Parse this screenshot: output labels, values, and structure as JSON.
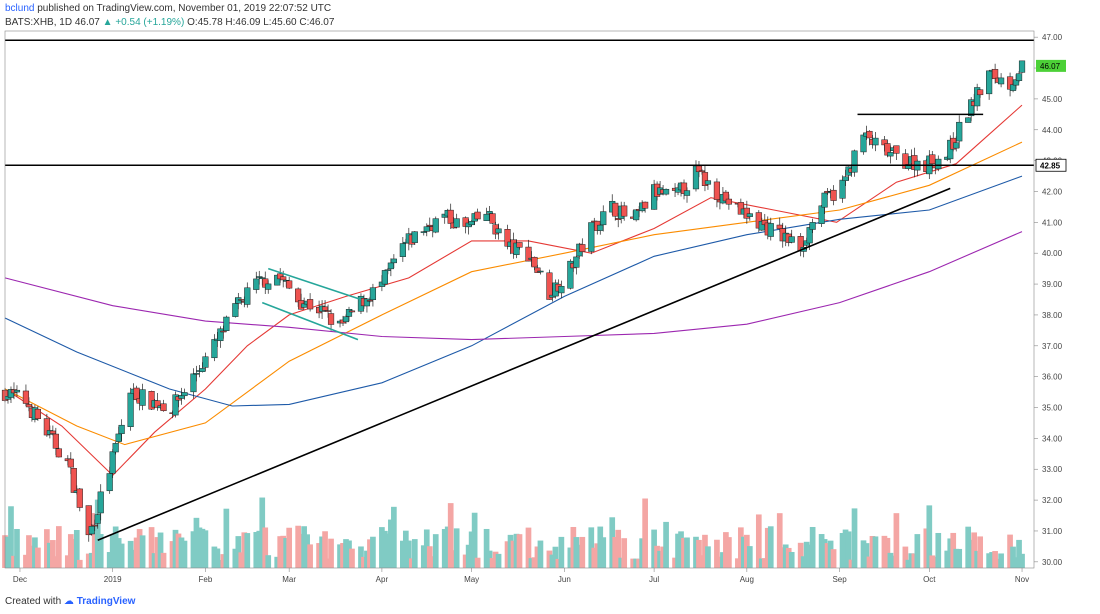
{
  "header": {
    "line1_user": "bclund",
    "line1_rest": "published on TradingView.com, November 01, 2019 22:07:52 UTC",
    "line2_symbol": "BATS:XHB, 1D",
    "line2_last": "46.07",
    "line2_change": "▲ +0.54 (+1.19%)",
    "line2_ohlc": "O:45.78 H:46.09 L:45.60 C:46.07"
  },
  "footer": {
    "created_with": "Created with",
    "brand": "TradingView"
  },
  "colors": {
    "up": "#26a69a",
    "down": "#ef5350",
    "ma_short": "#e53935",
    "ma_mid": "#fb8c00",
    "ma_long": "#1e5aa8",
    "ma_xlong": "#9c27b0",
    "channel": "#26a69a",
    "trendline": "#000000",
    "price_tag": "#4cd137"
  },
  "chart_data": {
    "type": "candlestick",
    "symbol": "BATS:XHB",
    "interval": "1D",
    "ylim": [
      29.8,
      47.2
    ],
    "y_ticks": [
      "47.00",
      "46.00",
      "45.00",
      "44.00",
      "43.00",
      "42.00",
      "41.00",
      "40.00",
      "39.00",
      "38.00",
      "37.00",
      "36.00",
      "35.00",
      "34.00",
      "33.00",
      "32.00",
      "31.00",
      "30.00"
    ],
    "x_labels": [
      {
        "label": "Dec",
        "date": "2018-12-01"
      },
      {
        "label": "2019",
        "date": "2019-01-01"
      },
      {
        "label": "Feb",
        "date": "2019-02-01"
      },
      {
        "label": "Mar",
        "date": "2019-03-01"
      },
      {
        "label": "Apr",
        "date": "2019-04-01"
      },
      {
        "label": "May",
        "date": "2019-05-01"
      },
      {
        "label": "Jun",
        "date": "2019-06-01"
      },
      {
        "label": "Jul",
        "date": "2019-07-01"
      },
      {
        "label": "Aug",
        "date": "2019-08-01"
      },
      {
        "label": "Sep",
        "date": "2019-09-01"
      },
      {
        "label": "Oct",
        "date": "2019-10-01"
      },
      {
        "label": "Nov",
        "date": "2019-11-01"
      }
    ],
    "last_price": {
      "value": 46.07,
      "label": "46.07"
    },
    "level_label": {
      "value": 42.85,
      "label": "42.85"
    },
    "price_path": [
      {
        "date": "2018-11-26",
        "close": 35.5
      },
      {
        "date": "2018-12-03",
        "close": 35.2
      },
      {
        "date": "2018-12-10",
        "close": 34.2
      },
      {
        "date": "2018-12-17",
        "close": 33.2
      },
      {
        "date": "2018-12-24",
        "close": 30.8
      },
      {
        "date": "2018-12-31",
        "close": 33.0
      },
      {
        "date": "2019-01-07",
        "close": 35.5
      },
      {
        "date": "2019-01-14",
        "close": 35.2
      },
      {
        "date": "2019-01-21",
        "close": 35.0
      },
      {
        "date": "2019-01-28",
        "close": 36.0
      },
      {
        "date": "2019-02-04",
        "close": 37.0
      },
      {
        "date": "2019-02-11",
        "close": 38.2
      },
      {
        "date": "2019-02-18",
        "close": 39.0
      },
      {
        "date": "2019-02-25",
        "close": 39.3
      },
      {
        "date": "2019-03-04",
        "close": 38.5
      },
      {
        "date": "2019-03-11",
        "close": 38.2
      },
      {
        "date": "2019-03-18",
        "close": 37.6
      },
      {
        "date": "2019-03-25",
        "close": 38.4
      },
      {
        "date": "2019-04-01",
        "close": 39.0
      },
      {
        "date": "2019-04-08",
        "close": 40.2
      },
      {
        "date": "2019-04-15",
        "close": 40.8
      },
      {
        "date": "2019-04-22",
        "close": 41.2
      },
      {
        "date": "2019-04-29",
        "close": 40.8
      },
      {
        "date": "2019-05-06",
        "close": 41.3
      },
      {
        "date": "2019-05-13",
        "close": 40.2
      },
      {
        "date": "2019-05-20",
        "close": 40.0
      },
      {
        "date": "2019-05-27",
        "close": 38.7
      },
      {
        "date": "2019-06-03",
        "close": 39.5
      },
      {
        "date": "2019-06-10",
        "close": 40.8
      },
      {
        "date": "2019-06-17",
        "close": 41.5
      },
      {
        "date": "2019-06-24",
        "close": 41.0
      },
      {
        "date": "2019-07-01",
        "close": 42.0
      },
      {
        "date": "2019-07-08",
        "close": 41.8
      },
      {
        "date": "2019-07-15",
        "close": 42.6
      },
      {
        "date": "2019-07-22",
        "close": 42.0
      },
      {
        "date": "2019-07-29",
        "close": 41.4
      },
      {
        "date": "2019-08-05",
        "close": 41.0
      },
      {
        "date": "2019-08-12",
        "close": 40.6
      },
      {
        "date": "2019-08-19",
        "close": 40.2
      },
      {
        "date": "2019-08-26",
        "close": 41.6
      },
      {
        "date": "2019-09-02",
        "close": 42.2
      },
      {
        "date": "2019-09-09",
        "close": 43.8
      },
      {
        "date": "2019-09-16",
        "close": 43.3
      },
      {
        "date": "2019-09-23",
        "close": 43.0
      },
      {
        "date": "2019-09-30",
        "close": 42.9
      },
      {
        "date": "2019-10-07",
        "close": 43.2
      },
      {
        "date": "2019-10-14",
        "close": 44.6
      },
      {
        "date": "2019-10-21",
        "close": 45.8
      },
      {
        "date": "2019-10-28",
        "close": 45.5
      },
      {
        "date": "2019-11-01",
        "close": 46.07
      }
    ],
    "moving_averages": [
      {
        "key": "ma_short",
        "points": [
          [
            "2018-11-26",
            35.6
          ],
          [
            "2018-12-15",
            34.4
          ],
          [
            "2019-01-01",
            32.8
          ],
          [
            "2019-01-15",
            34.2
          ],
          [
            "2019-02-01",
            35.6
          ],
          [
            "2019-02-15",
            37.0
          ],
          [
            "2019-03-01",
            38.0
          ],
          [
            "2019-03-20",
            38.6
          ],
          [
            "2019-04-10",
            39.2
          ],
          [
            "2019-05-01",
            40.4
          ],
          [
            "2019-05-20",
            40.4
          ],
          [
            "2019-06-10",
            40.0
          ],
          [
            "2019-07-01",
            40.8
          ],
          [
            "2019-07-20",
            41.8
          ],
          [
            "2019-08-10",
            41.4
          ],
          [
            "2019-08-31",
            41.0
          ],
          [
            "2019-09-20",
            42.3
          ],
          [
            "2019-10-10",
            42.9
          ],
          [
            "2019-11-01",
            44.8
          ]
        ]
      },
      {
        "key": "ma_mid",
        "points": [
          [
            "2018-11-26",
            35.6
          ],
          [
            "2018-12-20",
            34.4
          ],
          [
            "2019-01-05",
            33.8
          ],
          [
            "2019-02-01",
            34.5
          ],
          [
            "2019-03-01",
            36.5
          ],
          [
            "2019-04-01",
            38.0
          ],
          [
            "2019-05-01",
            39.4
          ],
          [
            "2019-06-01",
            40.0
          ],
          [
            "2019-07-01",
            40.6
          ],
          [
            "2019-08-01",
            41.0
          ],
          [
            "2019-09-01",
            41.4
          ],
          [
            "2019-10-01",
            42.2
          ],
          [
            "2019-11-01",
            43.6
          ]
        ]
      },
      {
        "key": "ma_long",
        "points": [
          [
            "2018-11-26",
            37.9
          ],
          [
            "2018-12-20",
            36.8
          ],
          [
            "2019-01-20",
            35.6
          ],
          [
            "2019-02-10",
            35.05
          ],
          [
            "2019-03-01",
            35.1
          ],
          [
            "2019-04-01",
            35.8
          ],
          [
            "2019-05-01",
            37.0
          ],
          [
            "2019-06-01",
            38.6
          ],
          [
            "2019-07-01",
            39.9
          ],
          [
            "2019-08-01",
            40.6
          ],
          [
            "2019-09-01",
            41.1
          ],
          [
            "2019-10-01",
            41.4
          ],
          [
            "2019-11-01",
            42.5
          ]
        ]
      },
      {
        "key": "ma_xlong",
        "points": [
          [
            "2018-11-26",
            39.2
          ],
          [
            "2019-01-01",
            38.3
          ],
          [
            "2019-02-01",
            37.8
          ],
          [
            "2019-03-01",
            37.6
          ],
          [
            "2019-04-01",
            37.3
          ],
          [
            "2019-05-01",
            37.2
          ],
          [
            "2019-06-01",
            37.3
          ],
          [
            "2019-07-01",
            37.4
          ],
          [
            "2019-08-01",
            37.7
          ],
          [
            "2019-09-01",
            38.4
          ],
          [
            "2019-10-01",
            39.4
          ],
          [
            "2019-11-01",
            40.7
          ]
        ]
      }
    ],
    "annotations": [
      {
        "kind": "hline",
        "y": 46.9,
        "from": "2018-11-26",
        "to": "2019-11-05"
      },
      {
        "kind": "hline",
        "y": 42.85,
        "from": "2018-11-26",
        "to": "2019-11-05"
      },
      {
        "kind": "hline",
        "y": 44.5,
        "from": "2019-09-07",
        "to": "2019-10-19"
      },
      {
        "kind": "trendline",
        "from": [
          "2018-12-27",
          30.7
        ],
        "to": [
          "2019-10-08",
          42.1
        ]
      },
      {
        "kind": "channel_upper",
        "from": [
          "2019-02-22",
          39.5
        ],
        "to": [
          "2019-03-25",
          38.5
        ]
      },
      {
        "kind": "channel_lower",
        "from": [
          "2019-02-20",
          38.4
        ],
        "to": [
          "2019-03-24",
          37.2
        ]
      }
    ]
  }
}
